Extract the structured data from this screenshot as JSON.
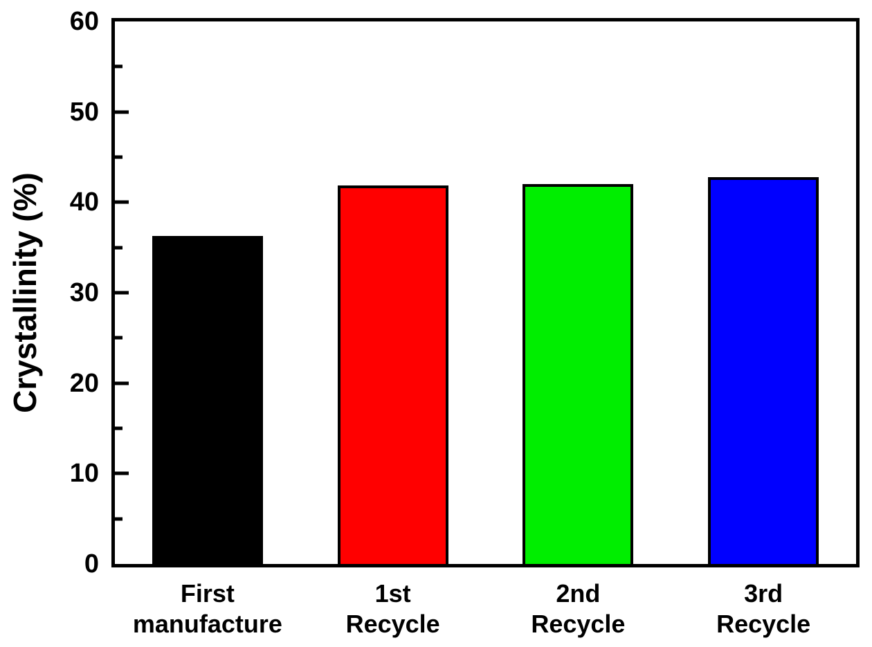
{
  "chart_data": {
    "type": "bar",
    "title": "",
    "xlabel": "",
    "ylabel": "Crystallinity (%)",
    "ylim": [
      0,
      60
    ],
    "ytick_values": [
      0,
      10,
      20,
      30,
      40,
      50,
      60
    ],
    "minor_tick_values": [
      5,
      15,
      25,
      35,
      45,
      55
    ],
    "categories": [
      "First\nmanufacture",
      "1st\nRecycle",
      "2nd\nRecycle",
      "3rd\nRecycle"
    ],
    "values": [
      36.3,
      41.9,
      42.0,
      42.8
    ],
    "bar_colors": [
      "#000000",
      "#FF0000",
      "#00EE00",
      "#0000FF"
    ],
    "bar_edge_color": "#000000",
    "axis_color": "#000000",
    "background": "#FFFFFF",
    "grid": false,
    "legend": false,
    "tick_direction": "in"
  }
}
